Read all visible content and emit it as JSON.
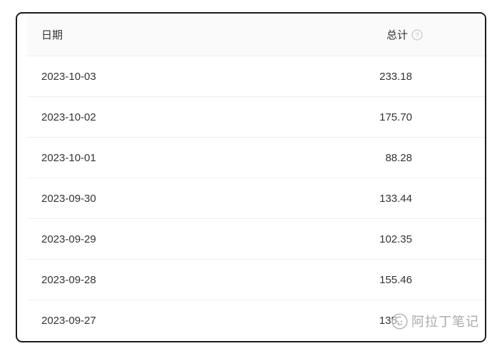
{
  "table": {
    "columns": [
      {
        "label": "日期",
        "align": "left"
      },
      {
        "label": "总计",
        "align": "right",
        "help_icon": "question-circle-icon"
      }
    ],
    "rows": [
      {
        "date": "2023-10-03",
        "total": "233.18"
      },
      {
        "date": "2023-10-02",
        "total": "175.70"
      },
      {
        "date": "2023-10-01",
        "total": "88.28"
      },
      {
        "date": "2023-09-30",
        "total": "133.44"
      },
      {
        "date": "2023-09-29",
        "total": "102.35"
      },
      {
        "date": "2023-09-28",
        "total": "155.46"
      },
      {
        "date": "2023-09-27",
        "total": "135.",
        "total_obscured": true
      }
    ]
  },
  "watermark": {
    "text": "阿拉丁笔记",
    "logo_icon": "aladdin-logo-icon"
  },
  "colors": {
    "card_border": "#1b1b1b",
    "header_bg": "#fafafa",
    "row_divider": "#efefef",
    "text": "#333333",
    "help_icon": "#c4c4c4",
    "watermark": "#a2a2a2"
  }
}
